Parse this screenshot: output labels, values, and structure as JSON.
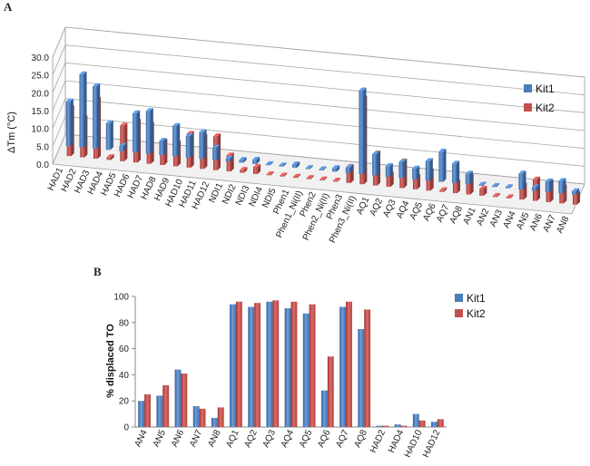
{
  "panel_a_label": "A",
  "panel_b_label": "B",
  "chart_data": [
    {
      "type": "bar",
      "variant": "3d-clustered",
      "title": "",
      "xlabel": "",
      "ylabel": "ΔTm (°C)",
      "ylim": [
        0,
        30
      ],
      "yticks": [
        "0.0",
        "5.0",
        "10.0",
        "15.0",
        "20.0",
        "25.0",
        "30.0"
      ],
      "grid": true,
      "legend_position": "right",
      "categories": [
        "HAD1",
        "HAD2",
        "HAD3",
        "HAD4",
        "HAD5",
        "HAD6",
        "HAD7",
        "HAD8",
        "HAD9",
        "HAD10",
        "HAD11",
        "HAD12",
        "NDI1",
        "NDI2",
        "NDI3",
        "NDI4",
        "NDI5",
        "Phen1",
        "Phen1_Ni(II)",
        "Phen2",
        "Phen2_Ni(II)",
        "Phen3",
        "Phen3_Ni(II)",
        "AQ1",
        "AQ2",
        "AQ3",
        "AQ4",
        "AQ5",
        "AQ6",
        "AQ7",
        "AQ8",
        "AN1",
        "AN2",
        "AN3",
        "AN4",
        "AN5",
        "AN6",
        "AN7",
        "AN8"
      ],
      "series": [
        {
          "name": "Kit1",
          "color": "#4a7ebb",
          "values": [
            12.5,
            20.5,
            17.5,
            7.5,
            1.5,
            11.0,
            12.0,
            4.0,
            8.5,
            6.0,
            7.5,
            3.5,
            0.8,
            0.8,
            1.2,
            0.3,
            0.2,
            1.0,
            0.2,
            0.3,
            1.0,
            1.5,
            23.5,
            6.0,
            3.0,
            4.5,
            3.0,
            5.5,
            8.5,
            5.5,
            3.0,
            0.2,
            0.2,
            0.2,
            4.5,
            1.0,
            3.0,
            3.5,
            1.0
          ]
        },
        {
          "name": "Kit2",
          "color": "#c0504d",
          "values": [
            13.5,
            11.0,
            16.5,
            0.8,
            10.0,
            11.5,
            11.0,
            6.5,
            6.5,
            9.5,
            9.0,
            9.5,
            4.5,
            0.8,
            2.0,
            0.3,
            0.3,
            0.2,
            0.3,
            0.3,
            0.3,
            4.5,
            24.0,
            9.0,
            3.5,
            7.5,
            3.5,
            5.5,
            0.5,
            3.0,
            5.0,
            2.0,
            0.2,
            0.3,
            4.0,
            6.0,
            5.5,
            4.5,
            3.0
          ]
        }
      ]
    },
    {
      "type": "bar",
      "title": "",
      "xlabel": "",
      "ylabel": "% displaced TO",
      "ylim": [
        0,
        100
      ],
      "yticks": [
        "0",
        "20",
        "40",
        "60",
        "80",
        "100"
      ],
      "grid": false,
      "legend_position": "top-right",
      "categories": [
        "AN4",
        "AN5",
        "AN6",
        "AN7",
        "AN8",
        "AQ1",
        "AQ2",
        "AQ3",
        "AQ4",
        "AQ5",
        "AQ6",
        "AQ7",
        "AQ8",
        "HAD2",
        "HAD4",
        "HAD10",
        "HAD12"
      ],
      "series": [
        {
          "name": "Kit1",
          "color": "#4a7ebb",
          "values": [
            20,
            24,
            44,
            16,
            7,
            94,
            92,
            96,
            91,
            87,
            28,
            92,
            75,
            1,
            2,
            10,
            4
          ]
        },
        {
          "name": "Kit2",
          "color": "#c0504d",
          "values": [
            25,
            32,
            41,
            14,
            15,
            96,
            95,
            97,
            96,
            94,
            54,
            96,
            90,
            1,
            1,
            5,
            6
          ]
        }
      ]
    }
  ]
}
